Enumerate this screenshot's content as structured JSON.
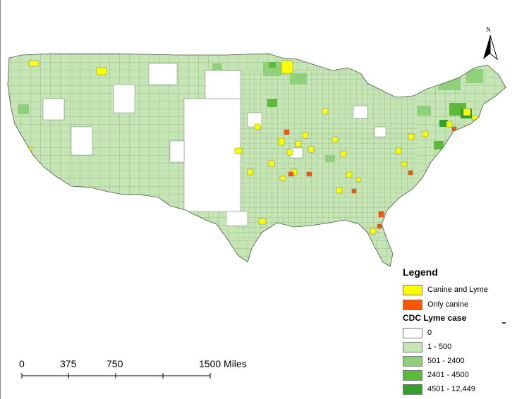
{
  "legend": {
    "title": "Legend",
    "categories": [
      {
        "label": "Canine and Lyme",
        "color": "#ffff00"
      },
      {
        "label": "Only canine",
        "color": "#ff5500"
      }
    ],
    "cdc_title": "CDC Lyme case",
    "classes": [
      {
        "label": "0",
        "color": "#ffffff"
      },
      {
        "label": "1 - 500",
        "color": "#c5e5b4"
      },
      {
        "label": "501 - 2400",
        "color": "#8fd17a"
      },
      {
        "label": "2401 - 4500",
        "color": "#5cb93a"
      },
      {
        "label": "4501 - 12,449",
        "color": "#33a02c"
      }
    ]
  },
  "scale_bar": {
    "labels": [
      "0",
      "375",
      "750",
      "1500 Miles"
    ]
  },
  "north_arrow": {
    "label": "N",
    "icon": "north-arrow-icon"
  }
}
